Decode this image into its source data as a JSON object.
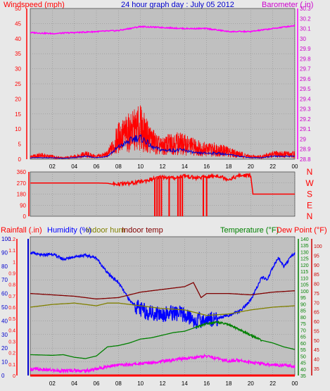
{
  "header": {
    "left_label": "Windspeed (mph)",
    "title": "24 hour graph day : July 05 2012",
    "right_label": "Barometer (.in)"
  },
  "colors": {
    "background": "#e8e8e8",
    "plot_bg": "#c0c0c0",
    "wind": "#ff0000",
    "wind_avg": "#0000cc",
    "barometer": "#ff00ff",
    "direction": "#ff0000",
    "humidity": "#0000ff",
    "indoor_hum": "#808000",
    "indoor_temp": "#800000",
    "temperature": "#008000",
    "dew_point": "#ff00ff",
    "rainfall": "#ff0000",
    "humidity_axis": "#0000cc",
    "temp_axis": "#008000",
    "dew_axis": "#cc0000"
  },
  "chart_data": [
    {
      "type": "line",
      "title": "24 hour graph day : July 05 2012",
      "x_ticks": [
        "02",
        "04",
        "06",
        "08",
        "10",
        "12",
        "14",
        "16",
        "18",
        "20",
        "22",
        "00"
      ],
      "grid": true,
      "y_left": {
        "label": "Windspeed (mph)",
        "ticks": [
          "0",
          "5",
          "10",
          "15",
          "20",
          "25",
          "30",
          "35",
          "40",
          "45",
          "50"
        ],
        "range": [
          0,
          50
        ]
      },
      "y_right": {
        "label": "Barometer (.in)",
        "ticks": [
          "28.8",
          "28.9",
          "29",
          "29.1",
          "29.2",
          "29.3",
          "29.4",
          "29.5",
          "29.6",
          "29.7",
          "29.8",
          "29.9",
          "30",
          "30.1",
          "30.2",
          "30.3"
        ],
        "range": [
          28.8,
          30.3
        ]
      },
      "series": [
        {
          "name": "Windspeed (mph)",
          "axis": "left",
          "color": "wind",
          "x": [
            0,
            1,
            2,
            3,
            4,
            5,
            6,
            7,
            7.5,
            8,
            8.5,
            9,
            9.5,
            10,
            10.5,
            11,
            11.5,
            12,
            13,
            14,
            15,
            16,
            17,
            18,
            19,
            20,
            21,
            22,
            23,
            24
          ],
          "values": [
            1,
            1.5,
            1,
            0.5,
            1,
            2,
            1,
            2,
            5,
            9,
            10,
            11,
            12,
            13,
            10,
            8,
            6,
            5,
            7,
            6,
            5,
            4,
            4,
            3,
            2,
            1,
            1,
            2,
            2,
            2
          ]
        },
        {
          "axis": "left",
          "color": "wind_avg",
          "x": [
            0,
            1,
            2,
            3,
            4,
            5,
            6,
            7,
            8,
            8.5,
            9,
            9.5,
            10,
            10.5,
            11,
            12,
            13,
            14,
            15,
            16,
            17,
            18,
            19,
            20,
            21,
            22,
            23,
            24
          ],
          "values": [
            0.5,
            0.5,
            0.5,
            0.3,
            0.5,
            1,
            0.5,
            1,
            4,
            5,
            6,
            7,
            7,
            6,
            4,
            3,
            3,
            3,
            2,
            2,
            2,
            1.5,
            1,
            0.5,
            0.5,
            1,
            1,
            1
          ]
        },
        {
          "name": "Barometer (.in)",
          "axis": "right",
          "color": "barometer",
          "x": [
            0,
            2,
            4,
            6,
            8,
            10,
            12,
            14,
            16,
            18,
            20,
            22,
            24
          ],
          "values": [
            30.06,
            30.05,
            30.06,
            30.07,
            30.08,
            30.12,
            30.11,
            30.1,
            30.1,
            30.07,
            30.07,
            30.1,
            30.13
          ]
        }
      ]
    },
    {
      "type": "line",
      "y_left": {
        "ticks": [
          "0",
          "90",
          "180",
          "270",
          "360"
        ],
        "range": [
          0,
          360
        ]
      },
      "y_right": {
        "ticks": [
          "N",
          "W",
          "S",
          "E",
          "N"
        ]
      },
      "series": [
        {
          "color": "direction",
          "x": [
            0,
            6,
            7,
            7.5,
            9,
            10,
            11,
            12,
            13,
            14,
            15,
            16,
            17,
            18,
            19,
            20,
            20.2,
            21,
            24
          ],
          "values": [
            270,
            270,
            268,
            260,
            265,
            280,
            300,
            320,
            310,
            330,
            310,
            320,
            330,
            300,
            330,
            330,
            180,
            180,
            180
          ]
        }
      ],
      "dips_to_zero_x": [
        11.3,
        11.5,
        11.7,
        11.9,
        12.6,
        13.4,
        13.6,
        13.8,
        15.7,
        16.0
      ]
    },
    {
      "type": "line",
      "legend": [
        "Rainfall (.in)",
        "Humidity (%)",
        "Indoor hum",
        "Indoor temp",
        "Temperature (°F)",
        "Dew Point (°F)"
      ],
      "axes": {
        "rainfall": [
          "0",
          "0.1",
          "0.2",
          "0.3",
          "0.4",
          "0.5",
          "0.6",
          "0.7",
          "0.8",
          "0.9",
          "1",
          "1.1",
          "1.2"
        ],
        "humidity": [
          "0",
          "10",
          "20",
          "30",
          "40",
          "50",
          "60",
          "70",
          "80",
          "90",
          "100"
        ],
        "temperature": [
          "35",
          "40",
          "45",
          "50",
          "55",
          "60",
          "65",
          "70",
          "75",
          "80",
          "85",
          "90",
          "95",
          "100",
          "105",
          "110",
          "115",
          "120",
          "125",
          "130",
          "135",
          "140"
        ],
        "dew_point": [
          "35",
          "40",
          "45",
          "50",
          "55",
          "60",
          "65",
          "70",
          "75",
          "80",
          "85",
          "90",
          "95",
          "100"
        ],
        "humidity_range": [
          0,
          100
        ],
        "temperature_range": [
          35,
          140
        ]
      },
      "series": [
        {
          "name": "Humidity (%)",
          "unit": "humidity",
          "color": "humidity",
          "x": [
            0,
            1,
            2,
            3,
            4,
            5,
            6,
            7,
            8,
            9,
            10,
            11,
            12,
            13,
            14,
            15,
            16,
            17,
            18,
            19,
            20,
            21,
            21.5,
            22,
            22.5,
            23,
            24
          ],
          "values": [
            90,
            88,
            89,
            85,
            87,
            88,
            86,
            75,
            68,
            55,
            48,
            46,
            45,
            46,
            44,
            40,
            41,
            42,
            44,
            47,
            55,
            72,
            70,
            79,
            86,
            80,
            90
          ]
        },
        {
          "name": "Indoor hum",
          "unit": "humidity",
          "color": "indoor_hum",
          "x": [
            0,
            2,
            4,
            6,
            7,
            8,
            10,
            12,
            14,
            16,
            18,
            20,
            22,
            24
          ],
          "values": [
            50,
            52,
            53,
            51,
            53,
            53,
            51,
            49,
            48,
            44,
            45,
            48,
            50,
            51
          ]
        },
        {
          "name": "Indoor temp",
          "unit": "humidity",
          "color": "indoor_temp",
          "x": [
            0,
            2,
            4,
            6,
            8,
            10,
            12,
            14,
            14.8,
            15.5,
            16,
            18,
            20,
            22,
            24
          ],
          "values": [
            60,
            59,
            58,
            56,
            57,
            61,
            63,
            65,
            68,
            57,
            60,
            60,
            59,
            61,
            62
          ]
        },
        {
          "name": "Temperature (°F)",
          "unit": "temperature",
          "color": "temperature",
          "x": [
            0,
            2,
            3,
            4,
            5,
            6,
            7,
            8,
            9,
            10,
            11,
            12,
            13,
            14,
            15,
            16,
            17,
            18,
            19,
            20,
            21,
            22,
            23,
            24
          ],
          "values": [
            51,
            50.5,
            51,
            49,
            48,
            50,
            57,
            58,
            60,
            63,
            64,
            66,
            68,
            69,
            72,
            75,
            76,
            74,
            70,
            66,
            62,
            60,
            57,
            55
          ]
        },
        {
          "name": "Dew Point (°F)",
          "unit": "temperature",
          "color": "dew_point",
          "x": [
            0,
            1,
            2,
            3,
            4,
            5,
            6,
            7,
            8,
            9,
            10,
            11,
            12,
            13,
            14,
            15,
            16,
            17,
            18,
            19,
            20,
            21,
            22,
            23,
            24
          ],
          "values": [
            40,
            39.5,
            39,
            38.5,
            39,
            38.5,
            40,
            42,
            43,
            43.5,
            44,
            45,
            46,
            47,
            48,
            49,
            50,
            48,
            46,
            47,
            45,
            44,
            43,
            43,
            42
          ]
        },
        {
          "name": "Rainfall (.in)",
          "unit": "rainfall",
          "color": "rainfall",
          "x": [
            0,
            24
          ],
          "values": [
            0,
            0
          ]
        }
      ]
    }
  ]
}
